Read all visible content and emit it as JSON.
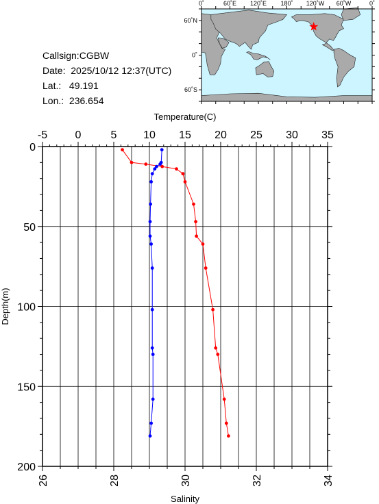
{
  "meta": {
    "callsign_label": "Callsign:",
    "callsign": "CGBW",
    "date_label": "Date:",
    "date": "2025/10/12 12:37(UTC)",
    "lat_label": "Lat.:",
    "lat": "49.191",
    "lon_label": "Lon.:",
    "lon": "236.654"
  },
  "map": {
    "lon_ticks": [
      "0˚",
      "60˚E",
      "120˚E",
      "180˚",
      "120˚W",
      "60˚W",
      "0˚"
    ],
    "lat_ticks": [
      "60˚N",
      "0˚",
      "60˚S"
    ],
    "ocean_color": "#ccf5ff",
    "land_color": "#aaaaaa",
    "marker_color": "#ff0000",
    "marker_lon": 236.654,
    "marker_lat": 49.191
  },
  "chart_data": {
    "type": "line",
    "y_axis": {
      "label": "Depth(m)",
      "lim": [
        0,
        200
      ],
      "ticks": [
        0,
        50,
        100,
        150,
        200
      ],
      "inverted": true
    },
    "x_top": {
      "label": "Temperature(C)",
      "lim": [
        -5,
        35
      ],
      "ticks": [
        -5,
        0,
        5,
        10,
        15,
        20,
        25,
        30,
        35
      ]
    },
    "x_bottom": {
      "label": "Salinity",
      "lim": [
        26,
        34
      ],
      "ticks": [
        26,
        28,
        30,
        32,
        34
      ]
    },
    "grid": true,
    "series": [
      {
        "quantity": "temperature",
        "axis": "top",
        "color": "#ff0000",
        "points": [
          [
            6.2,
            2
          ],
          [
            7.5,
            10
          ],
          [
            9.5,
            11
          ],
          [
            11.8,
            12.5
          ],
          [
            13.8,
            14
          ],
          [
            14.7,
            17
          ],
          [
            15.0,
            22
          ],
          [
            16.2,
            36
          ],
          [
            16.5,
            47
          ],
          [
            16.6,
            56
          ],
          [
            17.5,
            61
          ],
          [
            17.9,
            76
          ],
          [
            18.9,
            102
          ],
          [
            19.3,
            126
          ],
          [
            19.6,
            130
          ],
          [
            20.5,
            158
          ],
          [
            20.8,
            173
          ],
          [
            21.1,
            181
          ]
        ]
      },
      {
        "quantity": "salinity",
        "axis": "bottom",
        "color": "#0000ff",
        "points": [
          [
            29.35,
            2
          ],
          [
            29.33,
            10
          ],
          [
            29.3,
            11
          ],
          [
            29.2,
            12.5
          ],
          [
            29.15,
            14
          ],
          [
            29.08,
            17
          ],
          [
            29.05,
            22
          ],
          [
            29.03,
            36
          ],
          [
            29.02,
            47
          ],
          [
            29.02,
            56
          ],
          [
            29.05,
            61
          ],
          [
            29.08,
            76
          ],
          [
            29.08,
            102
          ],
          [
            29.08,
            126
          ],
          [
            29.1,
            130
          ],
          [
            29.1,
            158
          ],
          [
            29.05,
            173
          ],
          [
            29.02,
            181
          ]
        ]
      }
    ]
  }
}
